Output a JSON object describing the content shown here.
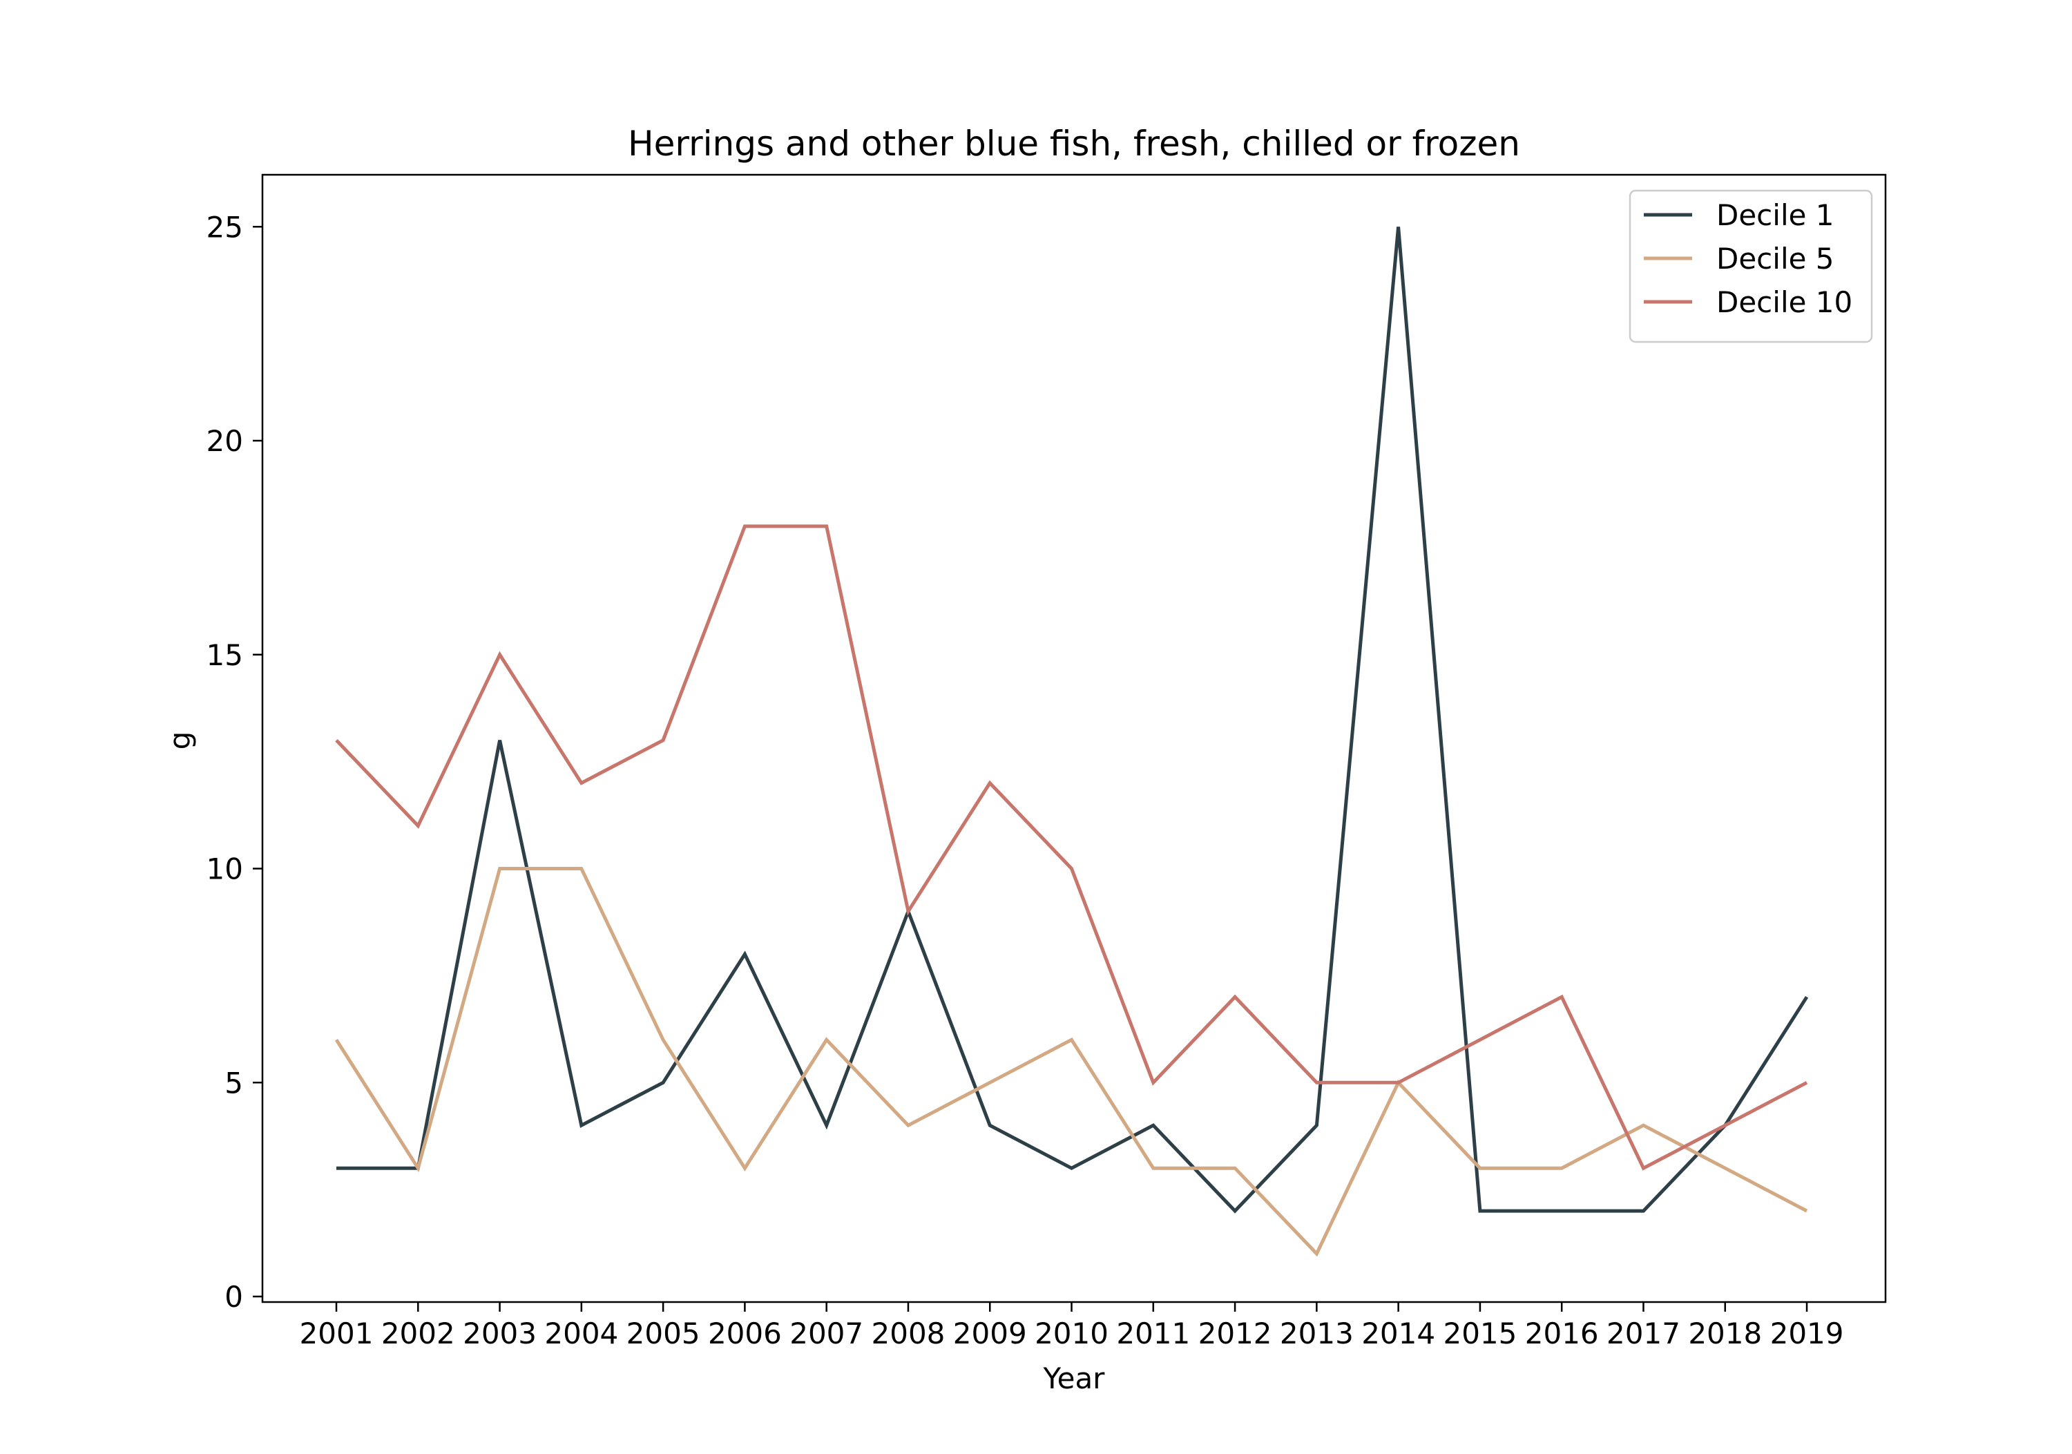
{
  "chart_data": {
    "type": "line",
    "title": "Herrings and other blue fish, fresh, chilled or frozen",
    "xlabel": "Year",
    "ylabel": "g",
    "ylim": [
      0,
      26
    ],
    "yticks": [
      0,
      5,
      10,
      15,
      20,
      25
    ],
    "grid": false,
    "legend_position": "top-right",
    "categories": [
      "2001",
      "2002",
      "2003",
      "2004",
      "2005",
      "2006",
      "2007",
      "2008",
      "2009",
      "2010",
      "2011",
      "2012",
      "2013",
      "2014",
      "2015",
      "2016",
      "2017",
      "2018",
      "2019"
    ],
    "series": [
      {
        "name": "Decile 1",
        "color": "#2e4047",
        "values": [
          3,
          3,
          13,
          4,
          5,
          8,
          4,
          9,
          4,
          3,
          4,
          2,
          4,
          25,
          2,
          2,
          2,
          4,
          7
        ]
      },
      {
        "name": "Decile 5",
        "color": "#d3a984",
        "values": [
          6,
          3,
          10,
          10,
          6,
          3,
          6,
          4,
          5,
          6,
          3,
          3,
          1,
          5,
          3,
          3,
          4,
          3,
          2
        ]
      },
      {
        "name": "Decile 10",
        "color": "#c8756b",
        "values": [
          13,
          11,
          15,
          12,
          13,
          18,
          18,
          9,
          12,
          10,
          5,
          7,
          5,
          5,
          6,
          7,
          3,
          4,
          5
        ]
      }
    ]
  }
}
